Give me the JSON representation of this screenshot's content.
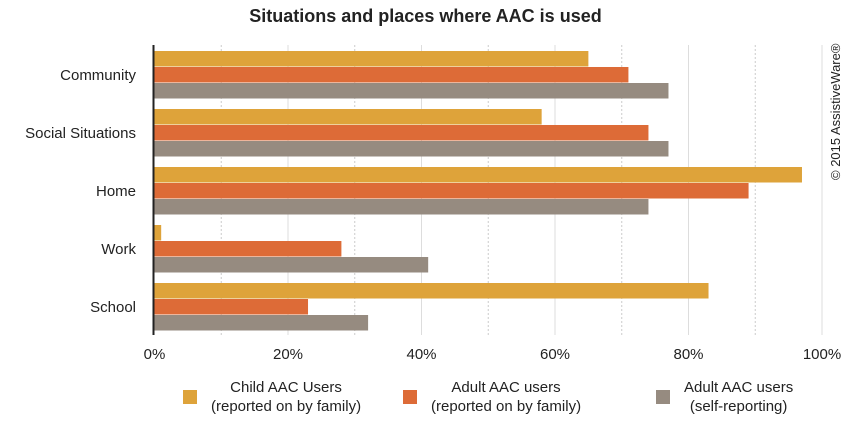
{
  "chart_data": {
    "type": "bar",
    "orientation": "horizontal",
    "title": "Situations and places where AAC is used",
    "categories": [
      "Community",
      "Social Situations",
      "Home",
      "Work",
      "School"
    ],
    "series": [
      {
        "name": "Child AAC Users (reported on by family)",
        "label_lines": [
          "Child AAC Users",
          "(reported on by family)"
        ],
        "color": "#dea33a",
        "values": [
          65,
          58,
          97,
          1,
          83
        ]
      },
      {
        "name": "Adult AAC users (reported on by family)",
        "label_lines": [
          "Adult AAC users",
          "(reported on by family)"
        ],
        "color": "#dd6b37",
        "values": [
          71,
          74,
          89,
          28,
          23
        ]
      },
      {
        "name": "Adult AAC users (self-reporting)",
        "label_lines": [
          "Adult AAC users",
          "(self-reporting)"
        ],
        "color": "#968b80",
        "values": [
          77,
          77,
          74,
          41,
          32
        ]
      }
    ],
    "xlim": [
      0,
      100
    ],
    "xticks": [
      "0%",
      "20%",
      "40%",
      "60%",
      "80%",
      "100%"
    ],
    "grid": true,
    "legend": "bottom"
  },
  "copyright": "© 2015 AssistiveWare®"
}
